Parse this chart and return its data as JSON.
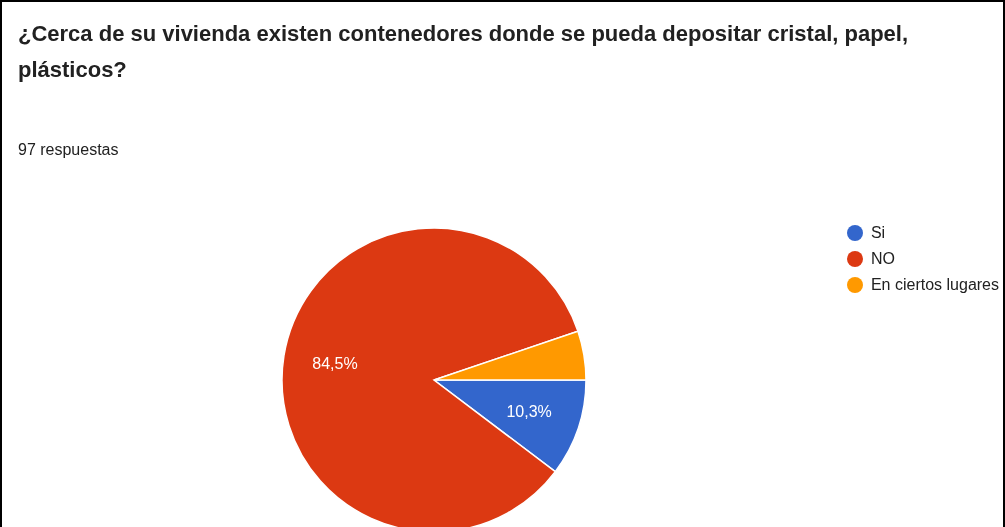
{
  "chart_data": {
    "type": "pie",
    "title": "¿Cerca de su vivienda existen contenedores donde se pueda depositar cristal, papel, plásticos?",
    "subtitle": "97 respuestas",
    "categories": [
      "Si",
      "NO",
      "En ciertos lugares"
    ],
    "values": [
      10.3,
      84.5,
      5.2
    ],
    "colors": [
      "#3366cc",
      "#dc3912",
      "#ff9900"
    ],
    "value_labels": [
      "10,3%",
      "84,5%",
      null
    ],
    "legend": "right"
  }
}
